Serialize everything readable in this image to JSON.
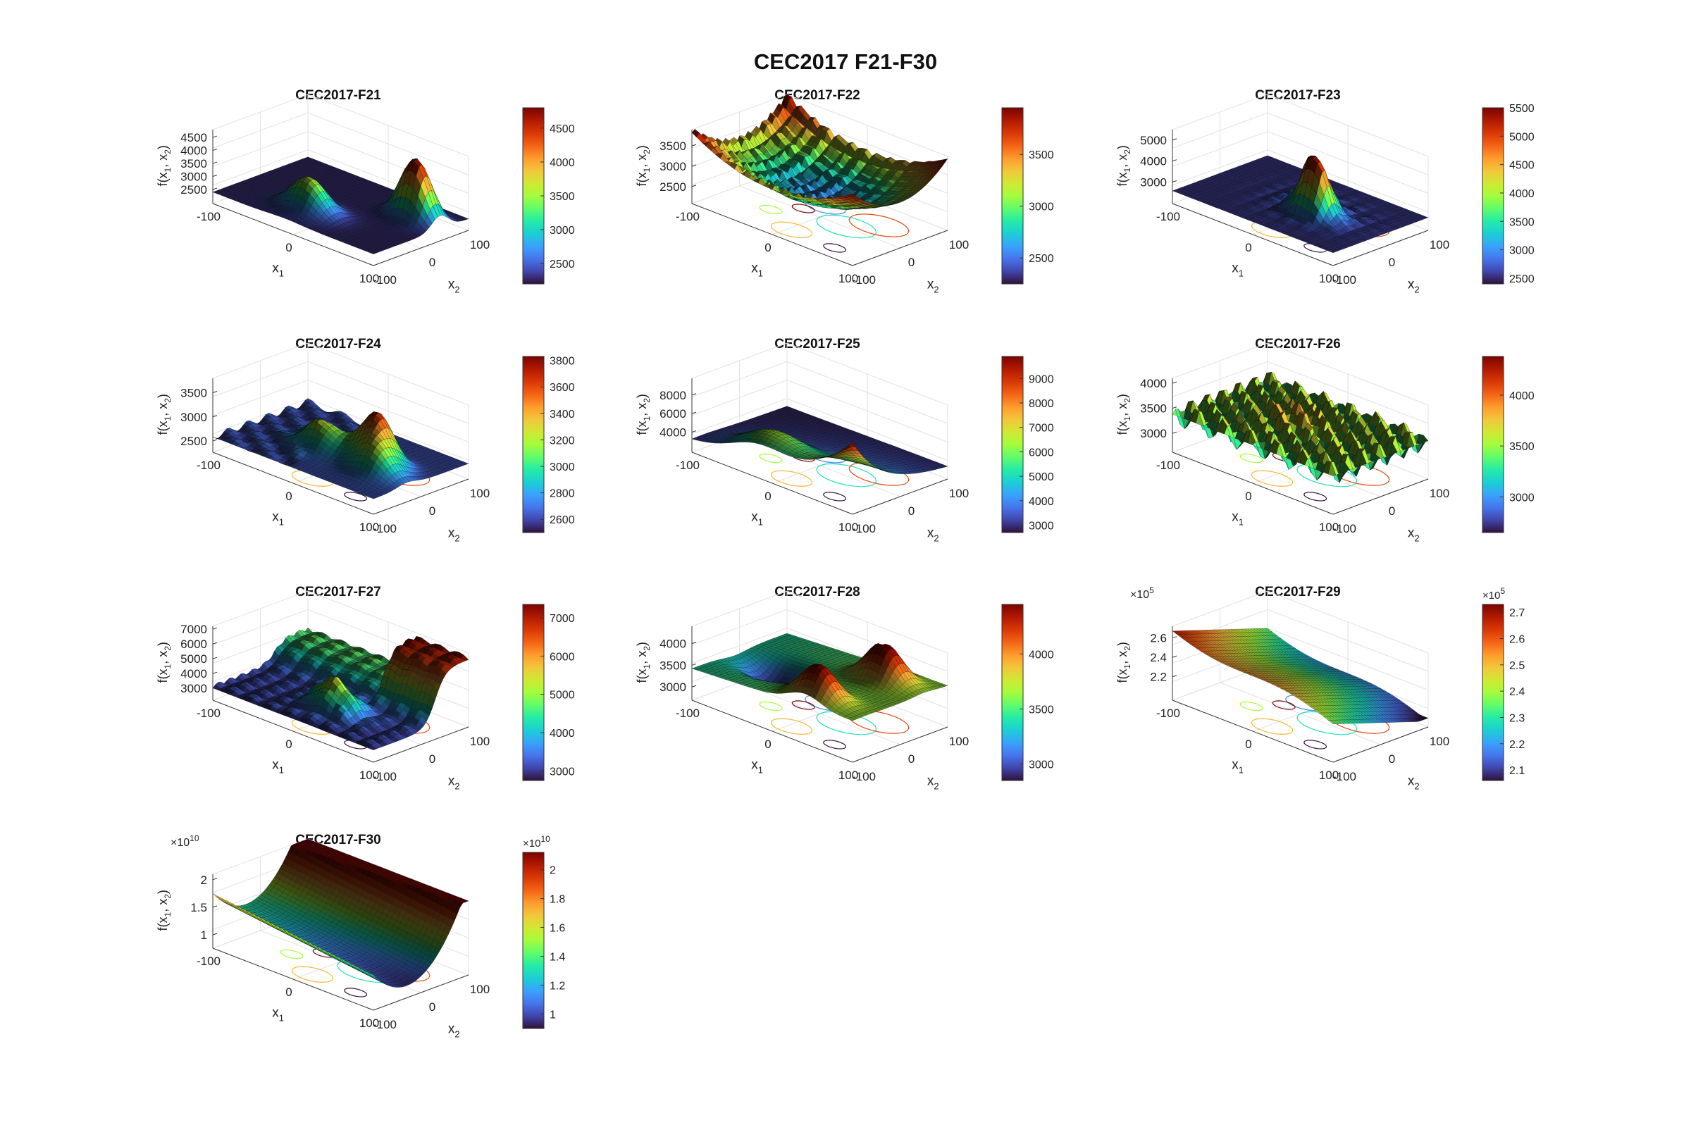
{
  "figure": {
    "title": "CEC2017 F21-F30"
  },
  "labels": {
    "x1": "x",
    "x1_sub": "1",
    "x2": "x",
    "x2_sub": "2",
    "z": "f(x",
    "z_mid": ", x",
    "z_end": ")"
  },
  "colors": {
    "colormap": [
      "#30123b",
      "#4145ab",
      "#4675ed",
      "#39a2fc",
      "#1bcfd4",
      "#24eca6",
      "#61fc6c",
      "#a4fc3b",
      "#d1e834",
      "#f3c63a",
      "#fe9b2d",
      "#f36315",
      "#d93806",
      "#b11901",
      "#7a0402"
    ]
  },
  "chart_data": [
    {
      "type": "surface",
      "title": "CEC2017-F21",
      "xlabel": "x1",
      "ylabel": "x2",
      "zlabel": "f(x1, x2)",
      "xlim": [
        -100,
        100
      ],
      "ylim": [
        -100,
        100
      ],
      "x_ticks": [
        "-100",
        "0",
        "100"
      ],
      "y_ticks": [
        "-100",
        "0",
        "100"
      ],
      "z_ticks": [
        "2500",
        "3000",
        "3500",
        "4000",
        "4500"
      ],
      "zlim": [
        2300,
        4800
      ],
      "colorbar_ticks": [
        "2500",
        "3000",
        "3500",
        "4000",
        "4500"
      ],
      "clim": [
        2200,
        4800
      ],
      "exponent": "",
      "colorbar_exponent": "",
      "contour": false,
      "shape": "twopeaks"
    },
    {
      "type": "surface",
      "title": "CEC2017-F22",
      "xlabel": "x1",
      "ylabel": "x2",
      "zlabel": "f(x1, x2)",
      "xlim": [
        -100,
        100
      ],
      "ylim": [
        -100,
        100
      ],
      "x_ticks": [
        "-100",
        "0",
        "100"
      ],
      "y_ticks": [
        "-100",
        "0",
        "100"
      ],
      "z_ticks": [
        "2500",
        "3000",
        "3500"
      ],
      "zlim": [
        2300,
        3900
      ],
      "colorbar_ticks": [
        "2500",
        "3000",
        "3500"
      ],
      "clim": [
        2250,
        3950
      ],
      "exponent": "",
      "colorbar_exponent": "",
      "contour": true,
      "shape": "bowlspiky"
    },
    {
      "type": "surface",
      "title": "CEC2017-F23",
      "xlabel": "x1",
      "ylabel": "x2",
      "zlabel": "f(x1, x2)",
      "xlim": [
        -100,
        100
      ],
      "ylim": [
        -100,
        100
      ],
      "x_ticks": [
        "-100",
        "0",
        "100"
      ],
      "y_ticks": [
        "-100",
        "0",
        "100"
      ],
      "z_ticks": [
        "3000",
        "4000",
        "5000"
      ],
      "zlim": [
        2400,
        5500
      ],
      "colorbar_ticks": [
        "2500",
        "3000",
        "3500",
        "4000",
        "4500",
        "5000",
        "5500"
      ],
      "clim": [
        2400,
        5500
      ],
      "exponent": "",
      "colorbar_exponent": "",
      "contour": true,
      "shape": "centerpeak"
    },
    {
      "type": "surface",
      "title": "CEC2017-F24",
      "xlabel": "x1",
      "ylabel": "x2",
      "zlabel": "f(x1, x2)",
      "xlim": [
        -100,
        100
      ],
      "ylim": [
        -100,
        100
      ],
      "x_ticks": [
        "-100",
        "0",
        "100"
      ],
      "y_ticks": [
        "-100",
        "0",
        "100"
      ],
      "z_ticks": [
        "2500",
        "3000",
        "3500"
      ],
      "zlim": [
        2450,
        3800
      ],
      "colorbar_ticks": [
        "2600",
        "2800",
        "3000",
        "3200",
        "3400",
        "3600",
        "3800"
      ],
      "clim": [
        2500,
        3830
      ],
      "exponent": "",
      "colorbar_exponent": "",
      "contour": true,
      "shape": "hills"
    },
    {
      "type": "surface",
      "title": "CEC2017-F25",
      "xlabel": "x1",
      "ylabel": "x2",
      "zlabel": "f(x1, x2)",
      "xlim": [
        -100,
        100
      ],
      "ylim": [
        -100,
        100
      ],
      "x_ticks": [
        "-100",
        "0",
        "100"
      ],
      "y_ticks": [
        "-100",
        "0",
        "100"
      ],
      "z_ticks": [
        "4000",
        "6000",
        "8000"
      ],
      "zlim": [
        2800,
        9800
      ],
      "colorbar_ticks": [
        "3000",
        "4000",
        "5000",
        "6000",
        "7000",
        "8000",
        "9000"
      ],
      "clim": [
        2700,
        9900
      ],
      "exponent": "",
      "colorbar_exponent": "",
      "contour": true,
      "shape": "cornerpeak"
    },
    {
      "type": "surface",
      "title": "CEC2017-F26",
      "xlabel": "x1",
      "ylabel": "x2",
      "zlabel": "f(x1, x2)",
      "xlim": [
        -100,
        100
      ],
      "ylim": [
        -100,
        100
      ],
      "x_ticks": [
        "-100",
        "0",
        "100"
      ],
      "y_ticks": [
        "-100",
        "0",
        "100"
      ],
      "z_ticks": [
        "3000",
        "3500",
        "4000"
      ],
      "zlim": [
        2800,
        4100
      ],
      "colorbar_ticks": [
        "3000",
        "3500",
        "4000"
      ],
      "clim": [
        2650,
        4380
      ],
      "exponent": "",
      "colorbar_exponent": "",
      "contour": true,
      "shape": "wavy"
    },
    {
      "type": "surface",
      "title": "CEC2017-F27",
      "xlabel": "x1",
      "ylabel": "x2",
      "zlabel": "f(x1, x2)",
      "xlim": [
        -100,
        100
      ],
      "ylim": [
        -100,
        100
      ],
      "x_ticks": [
        "-100",
        "0",
        "100"
      ],
      "y_ticks": [
        "-100",
        "0",
        "100"
      ],
      "z_ticks": [
        "3000",
        "4000",
        "5000",
        "6000",
        "7000"
      ],
      "zlim": [
        2800,
        7200
      ],
      "colorbar_ticks": [
        "3000",
        "4000",
        "5000",
        "6000",
        "7000"
      ],
      "clim": [
        2750,
        7350
      ],
      "exponent": "",
      "colorbar_exponent": "",
      "contour": true,
      "shape": "ridge"
    },
    {
      "type": "surface",
      "title": "CEC2017-F28",
      "xlabel": "x1",
      "ylabel": "x2",
      "zlabel": "f(x1, x2)",
      "xlim": [
        -100,
        100
      ],
      "ylim": [
        -100,
        100
      ],
      "x_ticks": [
        "-100",
        "0",
        "100"
      ],
      "y_ticks": [
        "-100",
        "0",
        "100"
      ],
      "z_ticks": [
        "3000",
        "3500",
        "4000"
      ],
      "zlim": [
        2900,
        4400
      ],
      "colorbar_ticks": [
        "3000",
        "3500",
        "4000"
      ],
      "clim": [
        2850,
        4450
      ],
      "exponent": "",
      "colorbar_exponent": "",
      "contour": true,
      "shape": "saddle"
    },
    {
      "type": "surface",
      "title": "CEC2017-F29",
      "xlabel": "x1",
      "ylabel": "x2",
      "zlabel": "f(x1, x2)",
      "xlim": [
        -100,
        100
      ],
      "ylim": [
        -100,
        100
      ],
      "x_ticks": [
        "-100",
        "0",
        "100"
      ],
      "y_ticks": [
        "-100",
        "0",
        "100"
      ],
      "z_ticks": [
        "2.2",
        "2.4",
        "2.6"
      ],
      "zlim": [
        2.05,
        2.72
      ],
      "colorbar_ticks": [
        "2.1",
        "2.2",
        "2.3",
        "2.4",
        "2.5",
        "2.6",
        "2.7"
      ],
      "clim": [
        2.06,
        2.73
      ],
      "exponent": "×10",
      "exponent_power": "5",
      "colorbar_exponent": "×10",
      "colorbar_exponent_power": "5",
      "contour": true,
      "shape": "plane"
    },
    {
      "type": "surface",
      "title": "CEC2017-F30",
      "xlabel": "x1",
      "ylabel": "x2",
      "zlabel": "f(x1, x2)",
      "xlim": [
        -100,
        100
      ],
      "ylim": [
        -100,
        100
      ],
      "x_ticks": [
        "-100",
        "0",
        "100"
      ],
      "y_ticks": [
        "-100",
        "0",
        "100"
      ],
      "z_ticks": [
        "1",
        "1.5",
        "2"
      ],
      "zlim": [
        0.92,
        2.1
      ],
      "colorbar_ticks": [
        "1",
        "1.2",
        "1.4",
        "1.6",
        "1.8",
        "2"
      ],
      "clim": [
        0.9,
        2.12
      ],
      "exponent": "×10",
      "exponent_power": "10",
      "colorbar_exponent": "×10",
      "colorbar_exponent_power": "10",
      "contour": true,
      "shape": "valley"
    }
  ]
}
